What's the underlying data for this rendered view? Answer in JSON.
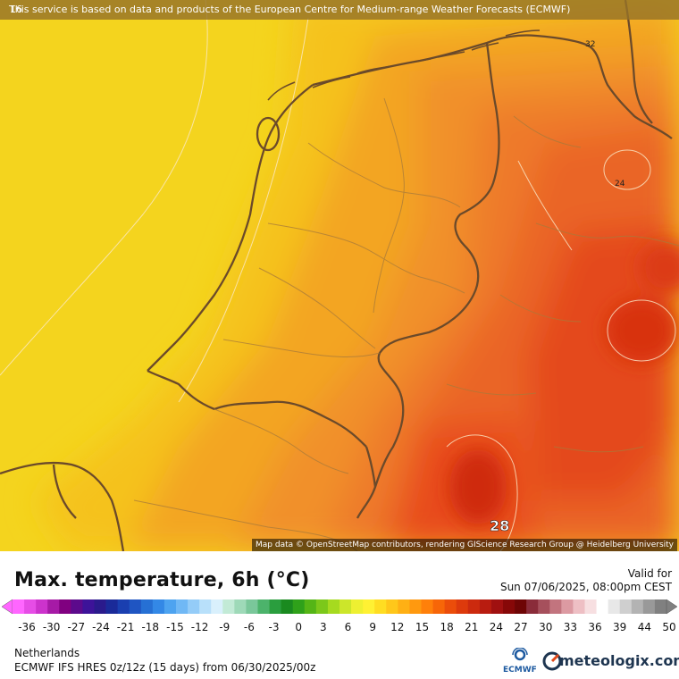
{
  "banner_text": "This service is based on data and products of the European Centre for Medium-range Weather Forecasts (ECMWF)",
  "corner_label": "16",
  "map_credit": "Map data © OpenStreetMap contributors, rendering GIScience Research Group @ Heidelberg University",
  "contour_labels": {
    "label_32": "32",
    "label_24": "24",
    "label_28": "28"
  },
  "title": "Max. temperature, 6h (°C)",
  "valid_label": "Valid for",
  "valid_time": "Sun 07/06/2025, 08:00pm CEST",
  "region": "Netherlands",
  "model_info": "ECMWF IFS HRES 0z/12z (15 days) from  06/30/2025/00z",
  "ecmwf_label": "ECMWF",
  "brand": "meteologix.com",
  "scale": {
    "ticks": [
      "-36",
      "-30",
      "-27",
      "-24",
      "-21",
      "-18",
      "-15",
      "-12",
      "-9",
      "-6",
      "-3",
      "0",
      "3",
      "6",
      "9",
      "12",
      "15",
      "18",
      "21",
      "24",
      "27",
      "30",
      "33",
      "36",
      "39",
      "44",
      "50"
    ],
    "colors": [
      "#ff66ff",
      "#e64de6",
      "#cc33cc",
      "#a61aa6",
      "#800080",
      "#5c0a8c",
      "#3d1399",
      "#2a1a8c",
      "#1a2a99",
      "#1a3fb0",
      "#1f55c2",
      "#2670d4",
      "#3388e6",
      "#4da3f0",
      "#70b8f5",
      "#94ccf8",
      "#b8e0fa",
      "#d9f0fc",
      "#c2ead6",
      "#9ed9b8",
      "#7ac79a",
      "#4cb36b",
      "#2a9e3e",
      "#1a8a1f",
      "#2fa11a",
      "#55b516",
      "#7cc81a",
      "#a6da1f",
      "#cce62a",
      "#eef031",
      "#fff133",
      "#ffdd22",
      "#ffc71a",
      "#ffb014",
      "#ff990f",
      "#ff800a",
      "#f76608",
      "#eb4d0a",
      "#dd3a0c",
      "#cc2a0e",
      "#b81c10",
      "#a01010",
      "#870808",
      "#6e0505",
      "#8a2c3a",
      "#a6505c",
      "#c2747e",
      "#dc9aa2",
      "#eebfc4",
      "#f7dfe1",
      "#ffffff",
      "#e8e8e8",
      "#cfcfcf",
      "#b3b3b3",
      "#999999",
      "#808080"
    ]
  }
}
